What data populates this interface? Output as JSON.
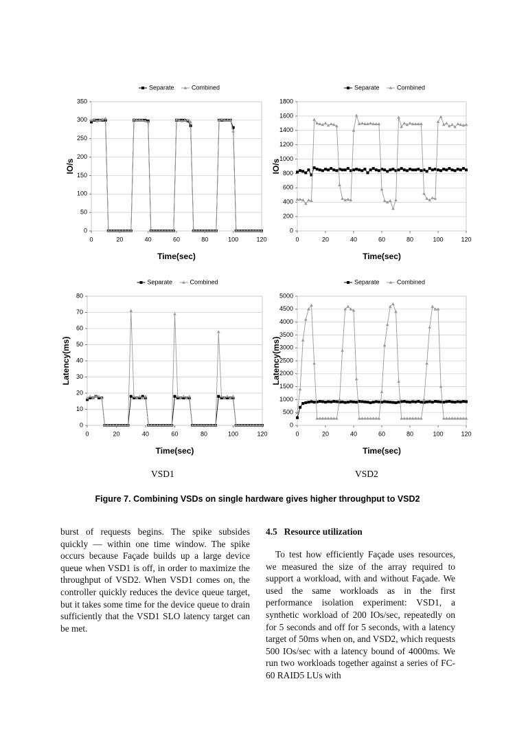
{
  "chart_data": [
    {
      "type": "line",
      "ylabel": "IO/s",
      "xlabel": "Time(sec)",
      "legend": "top",
      "grid": true,
      "xlim": [
        0,
        120
      ],
      "xticks": [
        0,
        20,
        40,
        60,
        80,
        100,
        120
      ],
      "ylim": [
        0,
        350
      ],
      "yticks": [
        0,
        50,
        100,
        150,
        200,
        250,
        300,
        350
      ],
      "x": [
        0,
        2,
        4,
        6,
        8,
        10,
        12,
        14,
        16,
        18,
        20,
        22,
        24,
        26,
        28,
        30,
        32,
        34,
        36,
        38,
        40,
        42,
        44,
        46,
        48,
        50,
        52,
        54,
        56,
        58,
        60,
        62,
        64,
        66,
        68,
        70,
        72,
        74,
        76,
        78,
        80,
        82,
        84,
        86,
        88,
        90,
        92,
        94,
        96,
        98,
        100,
        102,
        104,
        106,
        108,
        110,
        112,
        114,
        116,
        118,
        120
      ],
      "series": [
        {
          "name": "Separate",
          "color": "#000000",
          "marker": "square",
          "values": [
            295,
            300,
            300,
            300,
            300,
            300,
            0,
            0,
            0,
            0,
            0,
            0,
            0,
            0,
            0,
            300,
            300,
            300,
            300,
            300,
            298,
            0,
            0,
            0,
            0,
            0,
            0,
            0,
            0,
            0,
            300,
            300,
            300,
            300,
            298,
            285,
            0,
            0,
            0,
            0,
            0,
            0,
            0,
            0,
            0,
            300,
            300,
            300,
            300,
            300,
            280,
            0,
            0,
            0,
            0,
            0,
            0,
            0,
            0,
            0,
            0
          ]
        },
        {
          "name": "Combined",
          "color": "#999999",
          "marker": "triangle",
          "values": [
            300,
            302,
            298,
            300,
            302,
            305,
            0,
            0,
            0,
            0,
            0,
            0,
            0,
            0,
            0,
            302,
            300,
            300,
            300,
            298,
            295,
            0,
            0,
            0,
            0,
            0,
            0,
            0,
            0,
            0,
            302,
            300,
            298,
            300,
            300,
            295,
            0,
            0,
            0,
            0,
            0,
            0,
            0,
            0,
            0,
            300,
            302,
            300,
            300,
            300,
            270,
            0,
            0,
            0,
            0,
            0,
            0,
            0,
            0,
            0,
            0
          ]
        }
      ]
    },
    {
      "type": "line",
      "ylabel": "IO/s",
      "xlabel": "Time(sec)",
      "legend": "top",
      "grid": true,
      "xlim": [
        0,
        120
      ],
      "xticks": [
        0,
        20,
        40,
        60,
        80,
        100,
        120
      ],
      "ylim": [
        0,
        1800
      ],
      "yticks": [
        0,
        200,
        400,
        600,
        800,
        1000,
        1200,
        1400,
        1600,
        1800
      ],
      "x": [
        0,
        2,
        4,
        6,
        8,
        10,
        12,
        14,
        16,
        18,
        20,
        22,
        24,
        26,
        28,
        30,
        32,
        34,
        36,
        38,
        40,
        42,
        44,
        46,
        48,
        50,
        52,
        54,
        56,
        58,
        60,
        62,
        64,
        66,
        68,
        70,
        72,
        74,
        76,
        78,
        80,
        82,
        84,
        86,
        88,
        90,
        92,
        94,
        96,
        98,
        100,
        102,
        104,
        106,
        108,
        110,
        112,
        114,
        116,
        118,
        120
      ],
      "series": [
        {
          "name": "Separate",
          "color": "#000000",
          "marker": "square",
          "values": [
            820,
            840,
            830,
            810,
            850,
            780,
            880,
            860,
            850,
            840,
            860,
            850,
            870,
            850,
            840,
            860,
            850,
            850,
            870,
            840,
            850,
            860,
            850,
            840,
            860,
            810,
            850,
            870,
            850,
            840,
            860,
            850,
            830,
            850,
            860,
            840,
            850,
            870,
            850,
            840,
            860,
            850,
            850,
            860,
            840,
            850,
            830,
            870,
            850,
            860,
            850,
            840,
            860,
            850,
            870,
            850,
            840,
            860,
            850,
            870,
            850
          ]
        },
        {
          "name": "Combined",
          "color": "#999999",
          "marker": "triangle",
          "values": [
            440,
            440,
            430,
            380,
            430,
            420,
            1550,
            1500,
            1490,
            1480,
            1500,
            1470,
            1490,
            1480,
            1460,
            640,
            450,
            430,
            440,
            430,
            1400,
            1610,
            1490,
            1500,
            1490,
            1490,
            1500,
            1490,
            1490,
            1490,
            580,
            420,
            400,
            420,
            310,
            430,
            1580,
            1450,
            1500,
            1480,
            1500,
            1490,
            1490,
            1490,
            1490,
            520,
            450,
            430,
            460,
            450,
            1520,
            1590,
            1480,
            1500,
            1460,
            1480,
            1450,
            1490,
            1480,
            1470,
            1480
          ]
        }
      ]
    },
    {
      "type": "line",
      "ylabel": "Latency(ms)",
      "xlabel": "Time(sec)",
      "legend": "top",
      "grid": true,
      "xlim": [
        0,
        120
      ],
      "xticks": [
        0,
        20,
        40,
        60,
        80,
        100,
        120
      ],
      "ylim": [
        0,
        80
      ],
      "yticks": [
        0,
        10,
        20,
        30,
        40,
        50,
        60,
        70,
        80
      ],
      "x": [
        0,
        2,
        4,
        6,
        8,
        10,
        12,
        14,
        16,
        18,
        20,
        22,
        24,
        26,
        28,
        30,
        32,
        34,
        36,
        38,
        40,
        42,
        44,
        46,
        48,
        50,
        52,
        54,
        56,
        58,
        60,
        62,
        64,
        66,
        68,
        70,
        72,
        74,
        76,
        78,
        80,
        82,
        84,
        86,
        88,
        90,
        92,
        94,
        96,
        98,
        100,
        102,
        104,
        106,
        108,
        110,
        112,
        114,
        116,
        118,
        120
      ],
      "series": [
        {
          "name": "Separate",
          "color": "#000000",
          "marker": "square",
          "values": [
            16,
            17,
            17,
            18,
            17,
            17,
            0,
            0,
            0,
            0,
            0,
            0,
            0,
            0,
            0,
            18,
            17,
            17,
            17,
            18,
            17,
            0,
            0,
            0,
            0,
            0,
            0,
            0,
            0,
            0,
            18,
            17,
            17,
            17,
            17,
            17,
            0,
            0,
            0,
            0,
            0,
            0,
            0,
            0,
            0,
            18,
            17,
            17,
            17,
            17,
            17,
            0,
            0,
            0,
            0,
            0,
            0,
            0,
            0,
            0,
            0
          ]
        },
        {
          "name": "Combined",
          "color": "#999999",
          "marker": "triangle",
          "values": [
            17,
            18,
            17,
            18,
            18,
            17,
            0,
            0,
            0,
            0,
            0,
            0,
            0,
            0,
            0,
            71,
            18,
            17,
            18,
            17,
            18,
            0,
            0,
            0,
            0,
            0,
            0,
            0,
            0,
            0,
            69,
            18,
            17,
            18,
            17,
            18,
            0,
            0,
            0,
            0,
            0,
            0,
            0,
            0,
            0,
            58,
            18,
            17,
            18,
            17,
            18,
            0,
            0,
            0,
            0,
            0,
            0,
            0,
            0,
            0,
            0
          ]
        }
      ]
    },
    {
      "type": "line",
      "ylabel": "Latency(ms)",
      "xlabel": "Time(sec)",
      "legend": "top",
      "grid": true,
      "xlim": [
        0,
        120
      ],
      "xticks": [
        0,
        20,
        40,
        60,
        80,
        100,
        120
      ],
      "ylim": [
        0,
        5000
      ],
      "yticks": [
        0,
        500,
        1000,
        1500,
        2000,
        2500,
        3000,
        3500,
        4000,
        4500,
        5000
      ],
      "x": [
        0,
        2,
        4,
        6,
        8,
        10,
        12,
        14,
        16,
        18,
        20,
        22,
        24,
        26,
        28,
        30,
        32,
        34,
        36,
        38,
        40,
        42,
        44,
        46,
        48,
        50,
        52,
        54,
        56,
        58,
        60,
        62,
        64,
        66,
        68,
        70,
        72,
        74,
        76,
        78,
        80,
        82,
        84,
        86,
        88,
        90,
        92,
        94,
        96,
        98,
        100,
        102,
        104,
        106,
        108,
        110,
        112,
        114,
        116,
        118,
        120
      ],
      "series": [
        {
          "name": "Separate",
          "color": "#000000",
          "marker": "square",
          "values": [
            300,
            700,
            850,
            880,
            900,
            920,
            900,
            910,
            930,
            920,
            900,
            920,
            910,
            930,
            920,
            900,
            910,
            890,
            900,
            920,
            910,
            900,
            930,
            920,
            910,
            900,
            880,
            900,
            920,
            910,
            900,
            920,
            910,
            900,
            890,
            880,
            900,
            920,
            930,
            910,
            900,
            920,
            910,
            930,
            900,
            890,
            910,
            920,
            900,
            930,
            920,
            910,
            900,
            920,
            930,
            910,
            900,
            920,
            910,
            930,
            920
          ]
        },
        {
          "name": "Combined",
          "color": "#999999",
          "marker": "triangle",
          "values": [
            500,
            1400,
            3300,
            4100,
            4500,
            4650,
            2400,
            270,
            270,
            270,
            270,
            270,
            270,
            270,
            270,
            1000,
            2900,
            4500,
            4600,
            4500,
            4450,
            1800,
            270,
            270,
            270,
            270,
            270,
            270,
            270,
            270,
            1300,
            3100,
            3900,
            4600,
            4700,
            4400,
            1700,
            270,
            270,
            270,
            270,
            270,
            270,
            270,
            270,
            1000,
            2400,
            3800,
            4600,
            4500,
            4500,
            1500,
            270,
            270,
            270,
            270,
            270,
            270,
            270,
            270,
            270
          ]
        }
      ]
    }
  ],
  "figure": {
    "panel_labels": [
      "VSD1",
      "VSD2"
    ],
    "caption": "Figure 7. Combining VSDs on single hardware gives higher throughput to VSD2"
  },
  "text": {
    "left_column": "burst of requests begins. The spike subsides quickly — within one time window. The spike occurs because Façade builds up a large device queue when VSD1 is off, in order to maximize the throughput of VSD2. When VSD1 comes on, the controller quickly reduces the device queue target, but it takes some time for the device queue to drain sufficiently that the VSD1 SLO latency target can be met.",
    "section": {
      "number": "4.5",
      "title": "Resource utilization"
    },
    "right_column": "To test how efficiently Façade uses resources, we measured the size of the array required to support a workload, with and without Façade. We used the same workloads as in the first performance isolation experiment: VSD1, a synthetic workload of 200 IOs/sec, repeatedly on for 5 seconds and off for 5 seconds, with a latency target of 50ms when on, and VSD2, which requests 500 IOs/sec with a latency bound of 4000ms. We run two workloads together against a series of FC-60 RAID5 LUs with"
  }
}
